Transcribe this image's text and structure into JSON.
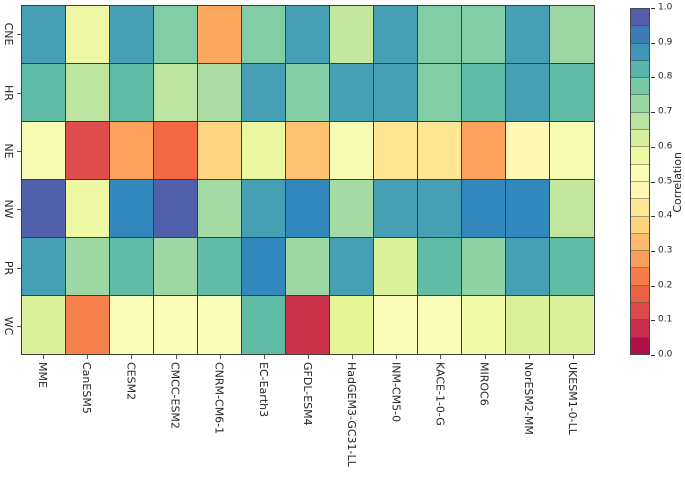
{
  "chart_data": {
    "type": "heatmap",
    "title": "",
    "xlabel": "",
    "ylabel": "",
    "rows": [
      "CNE",
      "HR",
      "NE",
      "NW",
      "PR",
      "WC"
    ],
    "columns": [
      "MME",
      "CanESM5",
      "CESM2",
      "CMCC-ESM2",
      "CNRM-CM6-1",
      "EC-Earth3",
      "GFDL-ESM4",
      "HadGEM3-GC31-LL",
      "INM-CM5-0",
      "KACE-1-0-G",
      "MIROC6",
      "NorESM2-MM",
      "UKESM1-0-LL"
    ],
    "values": [
      [
        0.86,
        0.57,
        0.86,
        0.76,
        0.29,
        0.76,
        0.86,
        0.66,
        0.86,
        0.76,
        0.76,
        0.86,
        0.72
      ],
      [
        0.81,
        0.67,
        0.81,
        0.67,
        0.7,
        0.86,
        0.76,
        0.86,
        0.86,
        0.76,
        0.81,
        0.86,
        0.81
      ],
      [
        0.53,
        0.13,
        0.28,
        0.19,
        0.38,
        0.58,
        0.34,
        0.53,
        0.42,
        0.42,
        0.28,
        0.48,
        0.53
      ],
      [
        0.97,
        0.57,
        0.9,
        0.97,
        0.71,
        0.86,
        0.9,
        0.71,
        0.86,
        0.86,
        0.9,
        0.9,
        0.66
      ],
      [
        0.86,
        0.72,
        0.81,
        0.72,
        0.81,
        0.9,
        0.72,
        0.86,
        0.62,
        0.81,
        0.74,
        0.86,
        0.81
      ],
      [
        0.62,
        0.23,
        0.52,
        0.52,
        0.52,
        0.81,
        0.08,
        0.6,
        0.52,
        0.52,
        0.56,
        0.62,
        0.62
      ]
    ],
    "colormap": "Spectral",
    "grid_on": true,
    "cell_border_color": "#3c3c3c",
    "colorbar": {
      "label": "Correlation",
      "min": 0.0,
      "max": 1.0,
      "segments": 20,
      "ticks": [
        "1.0",
        "0.9",
        "0.8",
        "0.7",
        "0.6",
        "0.5",
        "0.4",
        "0.3",
        "0.2",
        "0.1",
        "0.0"
      ],
      "position": "right"
    }
  }
}
